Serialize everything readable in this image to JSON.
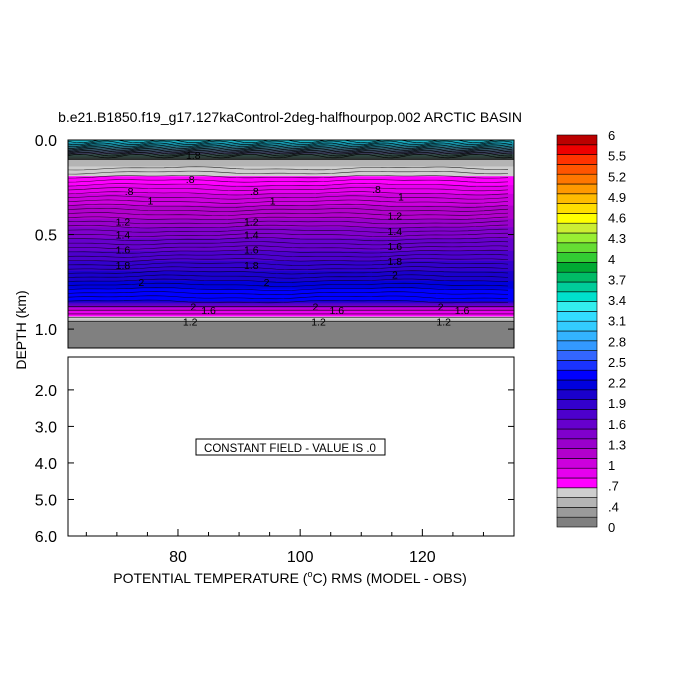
{
  "chart_data": [
    {
      "type": "heatmap",
      "panel": "upper",
      "title": "b.e21.B1850.f19_g17.127kaControl-2deg-halfhourpop.002 ARCTIC BASIN",
      "ylabel": "DEPTH (km)",
      "ylim": [
        0.0,
        1.1
      ],
      "y_ticks": [
        "0.0",
        "0.5",
        "1.0"
      ],
      "y_tick_values": [
        0.0,
        0.5,
        1.0
      ],
      "xlim": [
        62,
        135
      ],
      "contour_labels": [
        "1.8",
        ".8",
        ".8",
        ".8",
        ".8",
        "1",
        "1",
        "1",
        "1.2",
        "1.2",
        "1.2",
        "1.4",
        "1.4",
        "1.4",
        "1.6",
        "1.6",
        "1.6",
        "1.8",
        "1.8",
        "1.8",
        "2",
        "2",
        "2",
        "2",
        "2",
        "2",
        "1.6",
        "1.6",
        "1.6",
        "1.2",
        "1.2",
        "1.2"
      ],
      "depth_profile": [
        {
          "depth": 0.0,
          "value": 2.7
        },
        {
          "depth": 0.02,
          "value": 2.3
        },
        {
          "depth": 0.05,
          "value": 1.1
        },
        {
          "depth": 0.08,
          "value": 0.5
        },
        {
          "depth": 0.12,
          "value": 0.4
        },
        {
          "depth": 0.18,
          "value": 0.55
        },
        {
          "depth": 0.25,
          "value": 0.8
        },
        {
          "depth": 0.32,
          "value": 1.0
        },
        {
          "depth": 0.4,
          "value": 1.15
        },
        {
          "depth": 0.45,
          "value": 1.3
        },
        {
          "depth": 0.52,
          "value": 1.5
        },
        {
          "depth": 0.6,
          "value": 1.7
        },
        {
          "depth": 0.68,
          "value": 1.9
        },
        {
          "depth": 0.76,
          "value": 2.15
        },
        {
          "depth": 0.84,
          "value": 2.4
        },
        {
          "depth": 0.9,
          "value": 0.9
        },
        {
          "depth": 0.95,
          "value": 0.45
        },
        {
          "depth": 0.97,
          "value": 0.0
        },
        {
          "depth": 1.1,
          "value": 0.0
        }
      ],
      "missing_below_depth": 0.97
    },
    {
      "type": "heatmap",
      "panel": "lower",
      "xlabel": "POTENTIAL TEMPERATURE (°C) RMS (MODEL - OBS)",
      "xlabel_parts": [
        "POTENTIAL TEMPERATURE (",
        "o",
        "C) RMS (MODEL - OBS)"
      ],
      "x_ticks": [
        "80",
        "100",
        "120"
      ],
      "x_tick_values": [
        80,
        100,
        120
      ],
      "xlim": [
        62,
        135
      ],
      "ylim": [
        1.1,
        6.0
      ],
      "y_ticks": [
        "2.0",
        "3.0",
        "4.0",
        "5.0",
        "6.0"
      ],
      "y_tick_values": [
        2.0,
        3.0,
        4.0,
        5.0,
        6.0
      ],
      "annotation": "CONSTANT FIELD - VALUE IS .0",
      "constant_value": 0.0
    }
  ],
  "colorbar": {
    "labels": [
      "6",
      "5.5",
      "5.2",
      "4.9",
      "4.6",
      "4.3",
      "4",
      "3.7",
      "3.4",
      "3.1",
      "2.8",
      "2.5",
      "2.2",
      "1.9",
      "1.6",
      "1.3",
      "1",
      ".7",
      ".4",
      "0"
    ],
    "level_count": 40,
    "min": 0,
    "max": 6,
    "gray_levels": 4
  }
}
